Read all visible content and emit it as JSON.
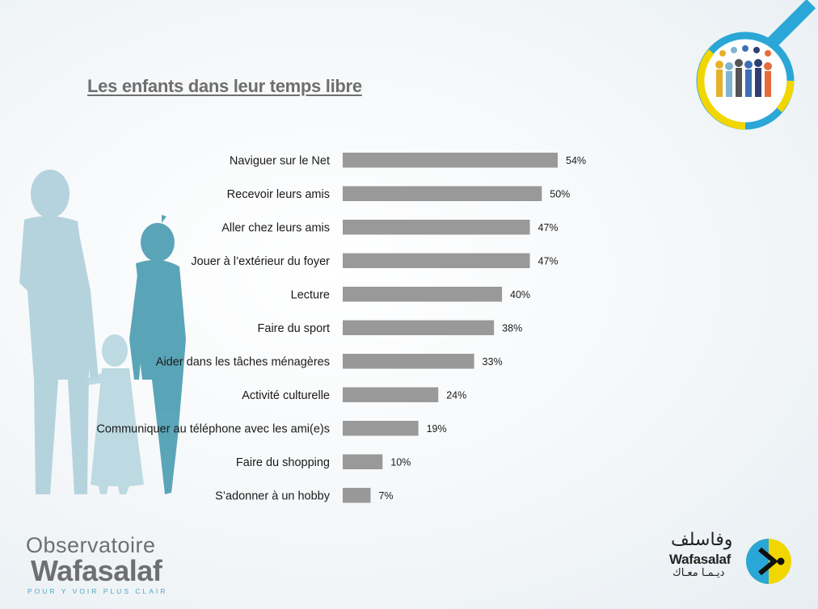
{
  "slide": {
    "title": "Les enfants dans leur temps libre"
  },
  "chart_data": {
    "type": "bar",
    "orientation": "horizontal",
    "categories": [
      "Naviguer sur le Net",
      "Recevoir leurs amis",
      "Aller chez leurs amis",
      "Jouer à l’extérieur du foyer",
      "Lecture",
      "Faire du sport",
      "Aider dans les tâches ménagères",
      "Activité culturelle",
      "Communiquer au téléphone avec les ami(e)s",
      "Faire du shopping",
      "S’adonner à un hobby"
    ],
    "values": [
      54,
      50,
      47,
      47,
      40,
      38,
      33,
      24,
      19,
      10,
      7
    ],
    "value_labels": [
      "54%",
      "50%",
      "47%",
      "47%",
      "40%",
      "38%",
      "33%",
      "24%",
      "19%",
      "10%",
      "7%"
    ],
    "xlim": [
      0,
      100
    ],
    "grid": false,
    "bar_color": "#999999"
  },
  "logos": {
    "observatoire_line1": "Observatoire",
    "observatoire_line2": "Wafasalaf",
    "observatoire_tagline": "POUR Y VOIR PLUS CLAIR",
    "wafasalaf_arabic": "وفاسلف",
    "wafasalaf_name": "Wafasalaf",
    "wafasalaf_arabic_sub": "ديـمـا معـاك"
  },
  "colors": {
    "title": "#6e6e6e",
    "silhouette_light": "#a9cdd8",
    "silhouette_dark": "#3f96ad",
    "accent_yellow": "#f2d600",
    "accent_blue": "#2aa7d6"
  }
}
